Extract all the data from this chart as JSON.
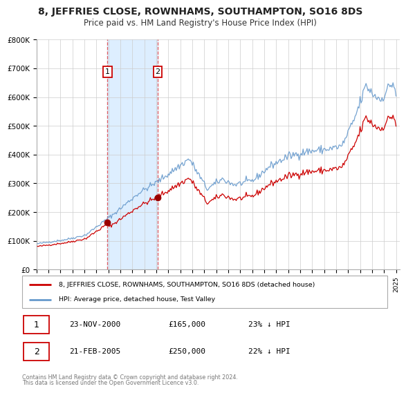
{
  "title": "8, JEFFRIES CLOSE, ROWNHAMS, SOUTHAMPTON, SO16 8DS",
  "subtitle": "Price paid vs. HM Land Registry's House Price Index (HPI)",
  "background_color": "#ffffff",
  "plot_bg_color": "#ffffff",
  "grid_color": "#cccccc",
  "ylim": [
    0,
    800000
  ],
  "yticks": [
    0,
    100000,
    200000,
    300000,
    400000,
    500000,
    600000,
    700000,
    800000
  ],
  "ytick_labels": [
    "£0",
    "£100K",
    "£200K",
    "£300K",
    "£400K",
    "£500K",
    "£600K",
    "£700K",
    "£800K"
  ],
  "x_start_year": 1995,
  "x_end_year": 2025,
  "transaction1_date": 2000.92,
  "transaction1_value": 165000,
  "transaction1_label": "1",
  "transaction1_display": "23-NOV-2000",
  "transaction1_price": "£165,000",
  "transaction1_hpi": "23% ↓ HPI",
  "transaction2_date": 2005.12,
  "transaction2_value": 250000,
  "transaction2_label": "2",
  "transaction2_display": "21-FEB-2005",
  "transaction2_price": "£250,000",
  "transaction2_hpi": "22% ↓ HPI",
  "shade_color": "#ddeeff",
  "red_line_color": "#cc0000",
  "blue_line_color": "#6699cc",
  "marker_color": "#990000",
  "legend_label_red": "8, JEFFRIES CLOSE, ROWNHAMS, SOUTHAMPTON, SO16 8DS (detached house)",
  "legend_label_blue": "HPI: Average price, detached house, Test Valley",
  "footer1": "Contains HM Land Registry data © Crown copyright and database right 2024.",
  "footer2": "This data is licensed under the Open Government Licence v3.0.",
  "title_fontsize": 10,
  "subtitle_fontsize": 8.5
}
